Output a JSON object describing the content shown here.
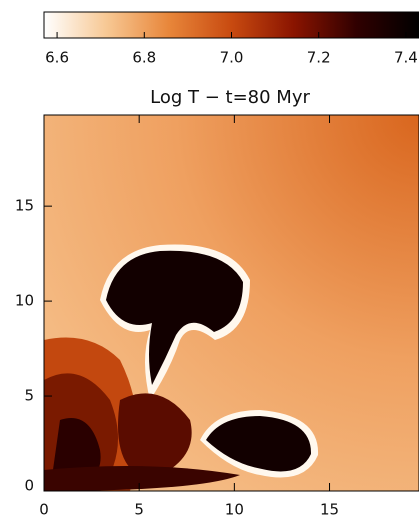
{
  "chart_data": {
    "type": "image",
    "title": "Log T − t=80 Myr",
    "colorbar": {
      "lim": [
        6.57,
        7.43
      ],
      "ticks": [
        6.6,
        6.8,
        {
          "value": 7.0,
          "label": "7.0"
        },
        7.2,
        7.4
      ],
      "colors": [
        "#ffffff",
        "#f7c894",
        "#e8863a",
        "#c84a10",
        "#8a1400",
        "#300000",
        "#000000"
      ]
    },
    "xlim": [
      0,
      19.7
    ],
    "xticks": [
      0,
      5,
      10,
      15
    ],
    "ylim": [
      0,
      19.8
    ],
    "yticks": [
      0,
      5,
      10,
      15
    ]
  }
}
